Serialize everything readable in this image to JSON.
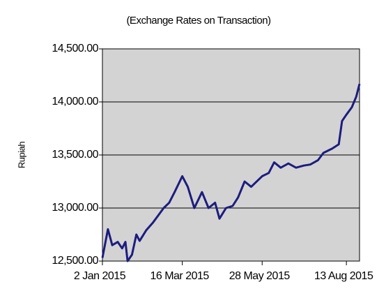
{
  "chart_data": {
    "type": "line",
    "title": "(Exchange Rates on Transaction)",
    "y_label": "Rupiah",
    "x": [
      "2 Jan 2015",
      "7 Jan 2015",
      "11 Jan 2015",
      "16 Jan 2015",
      "20 Jan 2015",
      "23 Jan 2015",
      "25 Jan 2015",
      "29 Jan 2015",
      "2 Feb 2015",
      "5 Feb 2015",
      "11 Feb 2015",
      "17 Feb 2015",
      "22 Feb 2015",
      "27 Feb 2015",
      "4 Mar 2015",
      "9 Mar 2015",
      "16 Mar 2015",
      "21 Mar 2015",
      "27 Mar 2015",
      "3 Apr 2015",
      "9 Apr 2015",
      "15 Apr 2015",
      "19 Apr 2015",
      "25 Apr 2015",
      "1 May 2015",
      "6 May 2015",
      "12 May 2015",
      "18 May 2015",
      "28 May 2015",
      "3 Jun 2015",
      "8 Jun 2015",
      "14 Jun 2015",
      "21 Jun 2015",
      "28 Jun 2015",
      "5 Jul 2015",
      "11 Jul 2015",
      "18 Jul 2015",
      "23 Jul 2015",
      "31 Jul 2015",
      "6 Aug 2015",
      "9 Aug 2015",
      "13 Aug 2015",
      "18 Aug 2015",
      "22 Aug 2015",
      "25 Aug 2015"
    ],
    "series": [
      {
        "color": "#1c1c80",
        "values": [
          12530,
          12800,
          12650,
          12680,
          12620,
          12680,
          12500,
          12560,
          12750,
          12690,
          12790,
          12860,
          12930,
          13000,
          13050,
          13150,
          13300,
          13200,
          13000,
          13150,
          13000,
          13050,
          12900,
          13000,
          13020,
          13100,
          13250,
          13200,
          13300,
          13330,
          13430,
          13380,
          13420,
          13380,
          13400,
          13410,
          13450,
          13520,
          13560,
          13600,
          13820,
          13880,
          13950,
          14050,
          14170
        ]
      }
    ],
    "xlim": [
      "2 Jan 2015",
      "25 Aug 2015"
    ],
    "xticks": [
      "2 Jan 2015",
      "16 Mar 2015",
      "28 May 2015",
      "13 Aug 2015"
    ],
    "ylim": [
      12500,
      14500
    ],
    "yticks": [
      {
        "value": 12500,
        "label": "12,500.00"
      },
      {
        "value": 13000,
        "label": "13,000.00"
      },
      {
        "value": 13500,
        "label": "13,500.00"
      },
      {
        "value": 14000,
        "label": "14,000.00"
      },
      {
        "value": 14500,
        "label": "14,500.00"
      }
    ],
    "grid": true
  }
}
